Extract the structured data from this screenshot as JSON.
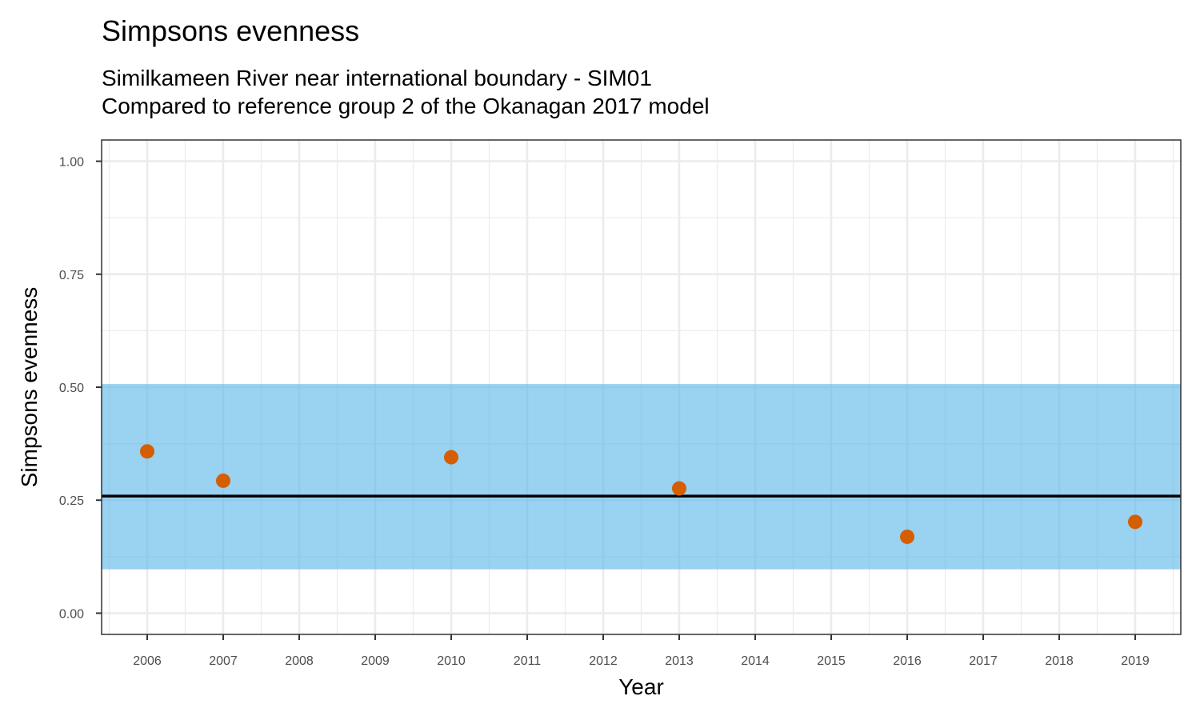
{
  "title": "Simpsons evenness",
  "subtitle_line1": "Similkameen River near international boundary - SIM01",
  "subtitle_line2": "Compared to reference group 2 of the Okanagan 2017 model",
  "chart_data": {
    "type": "scatter",
    "xlabel": "Year",
    "ylabel": "Simpsons evenness",
    "x_ticks": [
      2006,
      2007,
      2008,
      2009,
      2010,
      2011,
      2012,
      2013,
      2014,
      2015,
      2016,
      2017,
      2018,
      2019
    ],
    "y_ticks": [
      "0.00",
      "0.25",
      "0.50",
      "0.75",
      "1.00"
    ],
    "xlim": [
      2005.4,
      2019.6
    ],
    "ylim": [
      -0.047,
      1.047
    ],
    "points": [
      {
        "x": 2006,
        "y": 0.358
      },
      {
        "x": 2007,
        "y": 0.293
      },
      {
        "x": 2010,
        "y": 0.345
      },
      {
        "x": 2013,
        "y": 0.276
      },
      {
        "x": 2016,
        "y": 0.169
      },
      {
        "x": 2019,
        "y": 0.202
      }
    ],
    "reference_band": {
      "lower": 0.097,
      "upper": 0.507
    },
    "reference_line": 0.259,
    "colors": {
      "band": "#56B4E9",
      "point": "#D55E00",
      "line": "#000000",
      "grid": "#ebebeb"
    },
    "grid": true
  }
}
